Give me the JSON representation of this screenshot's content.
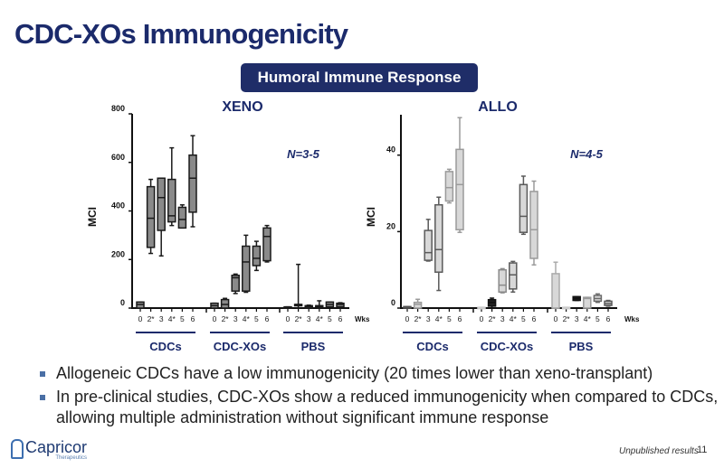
{
  "slide": {
    "title": "CDC-XOs Immunogenicity",
    "banner": "Humoral Immune Response",
    "bullets": [
      "Allogeneic CDCs have a low immunogenicity (20 times lower than xeno-transplant)",
      "In pre-clinical studies, CDC-XOs show a reduced immunogenicity when compared to CDCs, allowing multiple administration without significant immune response"
    ],
    "logo_text": "Capricor",
    "logo_sub": "Therapeutics",
    "footer_note": "Unpublished results",
    "page_number": "11"
  },
  "chart_data": [
    {
      "type": "box",
      "title": "XENO",
      "annotation": "N=3-5",
      "ylabel": "MCI",
      "xlabel": "Wks",
      "ylim": [
        0,
        800
      ],
      "yticks": [
        "0",
        "200",
        "400",
        "600",
        "800"
      ],
      "ytick_values": [
        0,
        200,
        400,
        600,
        800
      ],
      "x_ticks": [
        "0",
        "2*",
        "3",
        "4*",
        "5",
        "6"
      ],
      "groups": [
        {
          "name": "CDCs",
          "boxes": [
            {
              "wk": "0",
              "stats": [
                0,
                0,
                15,
                25,
                25
              ],
              "color": "#8a8a8a"
            },
            {
              "wk": "2*",
              "stats": [
                225,
                250,
                370,
                500,
                530
              ],
              "color": "#8a8a8a"
            },
            {
              "wk": "3",
              "stats": [
                215,
                320,
                455,
                535,
                535
              ],
              "color": "#8a8a8a"
            },
            {
              "wk": "4*",
              "stats": [
                340,
                355,
                380,
                530,
                660
              ],
              "color": "#8a8a8a"
            },
            {
              "wk": "5",
              "stats": [
                330,
                330,
                365,
                415,
                425
              ],
              "color": "#8a8a8a"
            },
            {
              "wk": "6",
              "stats": [
                335,
                395,
                535,
                630,
                710
              ],
              "color": "#8a8a8a"
            }
          ]
        },
        {
          "name": "CDC-XOs",
          "boxes": [
            {
              "wk": "0",
              "stats": [
                0,
                0,
                10,
                20,
                20
              ],
              "color": "#8a8a8a"
            },
            {
              "wk": "2*",
              "stats": [
                0,
                0,
                15,
                35,
                40
              ],
              "color": "#8a8a8a"
            },
            {
              "wk": "3",
              "stats": [
                60,
                70,
                125,
                135,
                140
              ],
              "color": "#8a8a8a"
            },
            {
              "wk": "4*",
              "stats": [
                65,
                70,
                190,
                255,
                300
              ],
              "color": "#8a8a8a"
            },
            {
              "wk": "5",
              "stats": [
                155,
                175,
                205,
                255,
                275
              ],
              "color": "#8a8a8a"
            },
            {
              "wk": "6",
              "stats": [
                190,
                195,
                295,
                330,
                340
              ],
              "color": "#8a8a8a"
            }
          ]
        },
        {
          "name": "PBS",
          "boxes": [
            {
              "wk": "0",
              "stats": [
                0,
                0,
                2,
                5,
                5
              ],
              "color": "#8a8a8a"
            },
            {
              "wk": "2*",
              "stats": [
                0,
                10,
                15,
                15,
                180
              ],
              "color": "#8a8a8a"
            },
            {
              "wk": "3",
              "stats": [
                0,
                0,
                5,
                10,
                12
              ],
              "color": "#8a8a8a"
            },
            {
              "wk": "4*",
              "stats": [
                0,
                5,
                10,
                10,
                30
              ],
              "color": "#8a8a8a"
            },
            {
              "wk": "5",
              "stats": [
                5,
                5,
                15,
                25,
                25
              ],
              "color": "#8a8a8a"
            },
            {
              "wk": "6",
              "stats": [
                0,
                5,
                15,
                20,
                22
              ],
              "color": "#8a8a8a"
            }
          ]
        }
      ]
    },
    {
      "type": "box",
      "title": "ALLO",
      "annotation": "N=4-5",
      "ylabel": "MCI",
      "xlabel": "Wks",
      "ylim": [
        0,
        50
      ],
      "yticks": [
        "0",
        "20",
        "40"
      ],
      "ytick_values": [
        0,
        20,
        40
      ],
      "x_ticks": [
        "0",
        "2*",
        "3",
        "4*",
        "5",
        "6"
      ],
      "groups": [
        {
          "name": "CDCs",
          "boxes": [
            {
              "wk": "0",
              "stats": [
                0,
                0,
                0.2,
                0.4,
                0.4
              ],
              "color": "#555555"
            },
            {
              "wk": "2*",
              "stats": [
                0,
                0,
                1,
                1.5,
                2.3
              ],
              "color": "#9a9a9a"
            },
            {
              "wk": "3",
              "stats": [
                12.3,
                12.5,
                14.5,
                20.3,
                23.2
              ],
              "color": "#5a5a5a"
            },
            {
              "wk": "4*",
              "stats": [
                4.6,
                9.4,
                15.3,
                27,
                29
              ],
              "color": "#5a5a5a"
            },
            {
              "wk": "5",
              "stats": [
                27.5,
                28,
                31.5,
                35.7,
                36.3
              ],
              "color": "#9a9a9a"
            },
            {
              "wk": "6",
              "stats": [
                19.8,
                20.5,
                32.3,
                41.5,
                49.8
              ],
              "color": "#9a9a9a"
            }
          ]
        },
        {
          "name": "CDC-XOs",
          "boxes": [
            {
              "wk": "0",
              "stats": [
                0,
                0,
                0.1,
                0.2,
                0.2
              ],
              "color": "#cccccc"
            },
            {
              "wk": "2*",
              "stats": [
                0,
                0.5,
                1.5,
                2.2,
                2.6
              ],
              "color": "#111111"
            },
            {
              "wk": "3",
              "stats": [
                4,
                4.2,
                6,
                10,
                10.3
              ],
              "color": "#8a8a8a"
            },
            {
              "wk": "4*",
              "stats": [
                4.2,
                5,
                8.7,
                11.8,
                12.2
              ],
              "color": "#5a5a5a"
            },
            {
              "wk": "5",
              "stats": [
                19.3,
                19.8,
                24,
                32.3,
                34.5
              ],
              "color": "#5a5a5a"
            },
            {
              "wk": "6",
              "stats": [
                11.3,
                13,
                20.5,
                30.5,
                33.2
              ],
              "color": "#9a9a9a"
            }
          ]
        },
        {
          "name": "PBS",
          "boxes": [
            {
              "wk": "0",
              "stats": [
                0,
                0,
                0,
                9,
                12
              ],
              "color": "#aaaaaa"
            },
            {
              "wk": "2*",
              "stats": [
                0,
                0,
                0.1,
                0.2,
                0.2
              ],
              "color": "#cccccc"
            },
            {
              "wk": "3",
              "stats": [
                2,
                2,
                2.5,
                3,
                3
              ],
              "color": "#111111"
            },
            {
              "wk": "4*",
              "stats": [
                0,
                0,
                2.5,
                2.8,
                2.8
              ],
              "color": "#9a9a9a"
            },
            {
              "wk": "5",
              "stats": [
                1.5,
                1.8,
                2.5,
                3.3,
                3.7
              ],
              "color": "#6a6a6a"
            },
            {
              "wk": "6",
              "stats": [
                0.5,
                0.7,
                1.2,
                1.8,
                2
              ],
              "color": "#5a5a5a"
            }
          ]
        }
      ]
    }
  ]
}
